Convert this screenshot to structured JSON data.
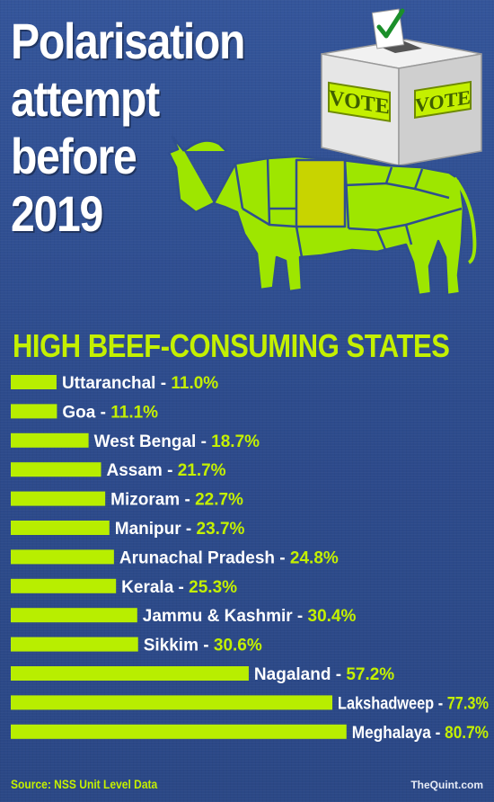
{
  "title": "Polarisation\nattempt\nbefore\n2019",
  "ballot_box": {
    "label_front": "VOTE",
    "label_side": "VOTE"
  },
  "source": "Source: NSS Unit Level Data",
  "brand": "TheQuint.com",
  "colors": {
    "background": "#2f4e8f",
    "bar": "#b8ee00",
    "state_label": "#ffffff",
    "value_label": "#c4f000",
    "cow": "#9ee600",
    "cow_highlight": "#c8d400"
  },
  "chart_data": {
    "type": "bar",
    "orientation": "horizontal",
    "title": "HIGH BEEF-CONSUMING STATES",
    "categories": [
      "Uttaranchal",
      "Goa",
      "West Bengal",
      "Assam",
      "Mizoram",
      "Manipur",
      "Arunachal Pradesh",
      "Kerala",
      "Jammu & Kashmir",
      "Sikkim",
      "Nagaland",
      "Lakshadweep",
      "Meghalaya"
    ],
    "values": [
      11.0,
      11.1,
      18.7,
      21.7,
      22.7,
      23.7,
      24.8,
      25.3,
      30.4,
      30.6,
      57.2,
      77.3,
      80.7
    ],
    "value_labels": [
      "11.0%",
      "11.1%",
      "18.7%",
      "21.7%",
      "22.7%",
      "23.7%",
      "24.8%",
      "25.3%",
      "30.4%",
      "30.6%",
      "57.2%",
      "77.3%",
      "80.7%"
    ],
    "separator": "-",
    "xlim": [
      0,
      95
    ],
    "grid": false,
    "legend": "none"
  }
}
